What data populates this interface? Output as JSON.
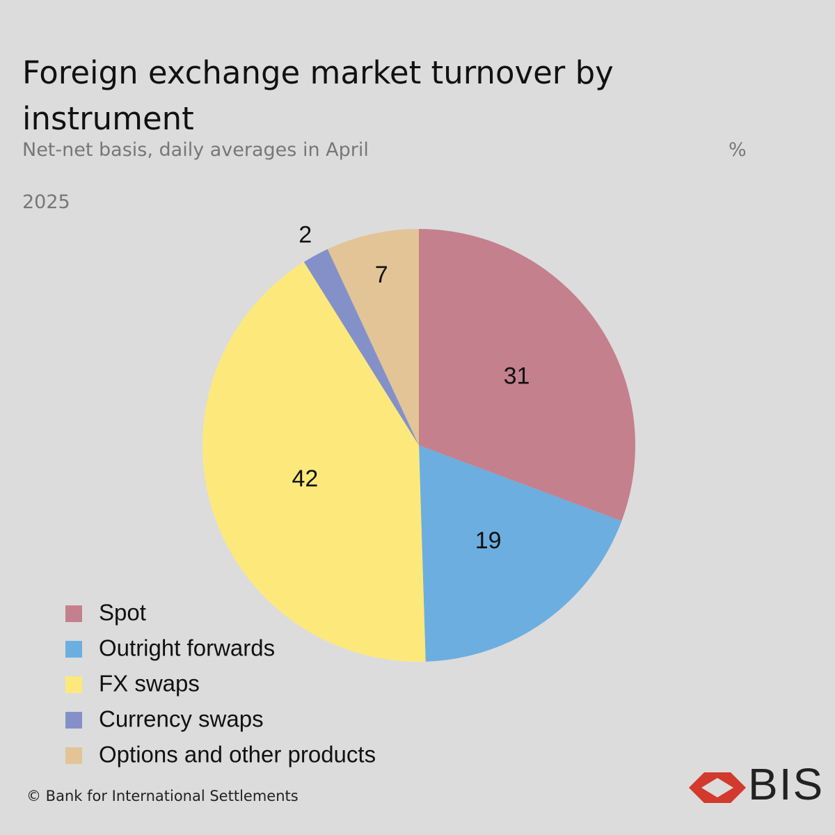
{
  "chart_data": {
    "type": "pie",
    "title": "Foreign exchange market turnover by instrument",
    "subtitle": "Net-net basis, daily averages in April",
    "unit": "%",
    "period": "2025",
    "categories": [
      "Spot",
      "Outright forwards",
      "FX swaps",
      "Currency swaps",
      "Options and other products"
    ],
    "values": [
      31,
      19,
      42,
      2,
      7
    ],
    "colors": [
      "#c4808d",
      "#6caee0",
      "#fde97b",
      "#8491c9",
      "#e2c496"
    ],
    "legend": "bottom-left",
    "source": "© Bank for International Settlements",
    "logo": "BIS"
  }
}
